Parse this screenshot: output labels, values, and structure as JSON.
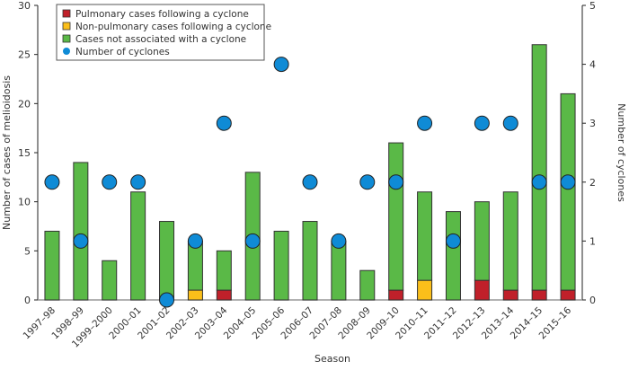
{
  "chart_data": {
    "type": "bar",
    "stacked": true,
    "title": "",
    "xlabel": "Season",
    "ylabel": "Number of cases of melioidosis",
    "y2label": "Number of cyclones",
    "ylim": [
      0,
      30
    ],
    "y2lim": [
      0,
      5
    ],
    "yticks": [
      0,
      5,
      10,
      15,
      20,
      25,
      30
    ],
    "y2ticks": [
      0,
      1,
      2,
      3,
      4,
      5
    ],
    "grid": false,
    "legend_position": "top-left",
    "categories": [
      "1997–98",
      "1998–99",
      "1999–2000",
      "2000–01",
      "2001–02",
      "2002–03",
      "2003–04",
      "2004–05",
      "2005–06",
      "2006–07",
      "2007–08",
      "2008–09",
      "2009–10",
      "2010–11",
      "2011–12",
      "2012–13",
      "2013–14",
      "2014–15",
      "2015–16"
    ],
    "series": [
      {
        "name": "Pulmonary cases following a cyclone",
        "color": "#c0202a",
        "values": [
          0,
          0,
          0,
          0,
          0,
          0,
          1,
          0,
          0,
          0,
          0,
          0,
          1,
          0,
          0,
          2,
          1,
          1,
          1
        ]
      },
      {
        "name": "Non-pulmonary cases following a cyclone",
        "color": "#fbbf1a",
        "values": [
          0,
          0,
          0,
          0,
          0,
          1,
          0,
          0,
          0,
          0,
          0,
          0,
          0,
          2,
          0,
          0,
          0,
          0,
          0
        ]
      },
      {
        "name": "Cases not associated with a cyclone",
        "color": "#5ab947",
        "values": [
          7,
          14,
          4,
          11,
          8,
          5,
          4,
          13,
          7,
          8,
          6,
          3,
          15,
          9,
          9,
          8,
          10,
          25,
          20
        ]
      },
      {
        "name": "Number of cyclones",
        "color": "#0f8bd6",
        "type": "scatter",
        "axis": "right",
        "values": [
          2,
          1,
          2,
          2,
          0,
          1,
          3,
          1,
          4,
          2,
          1,
          2,
          2,
          3,
          1,
          3,
          3,
          2,
          2
        ]
      }
    ]
  }
}
